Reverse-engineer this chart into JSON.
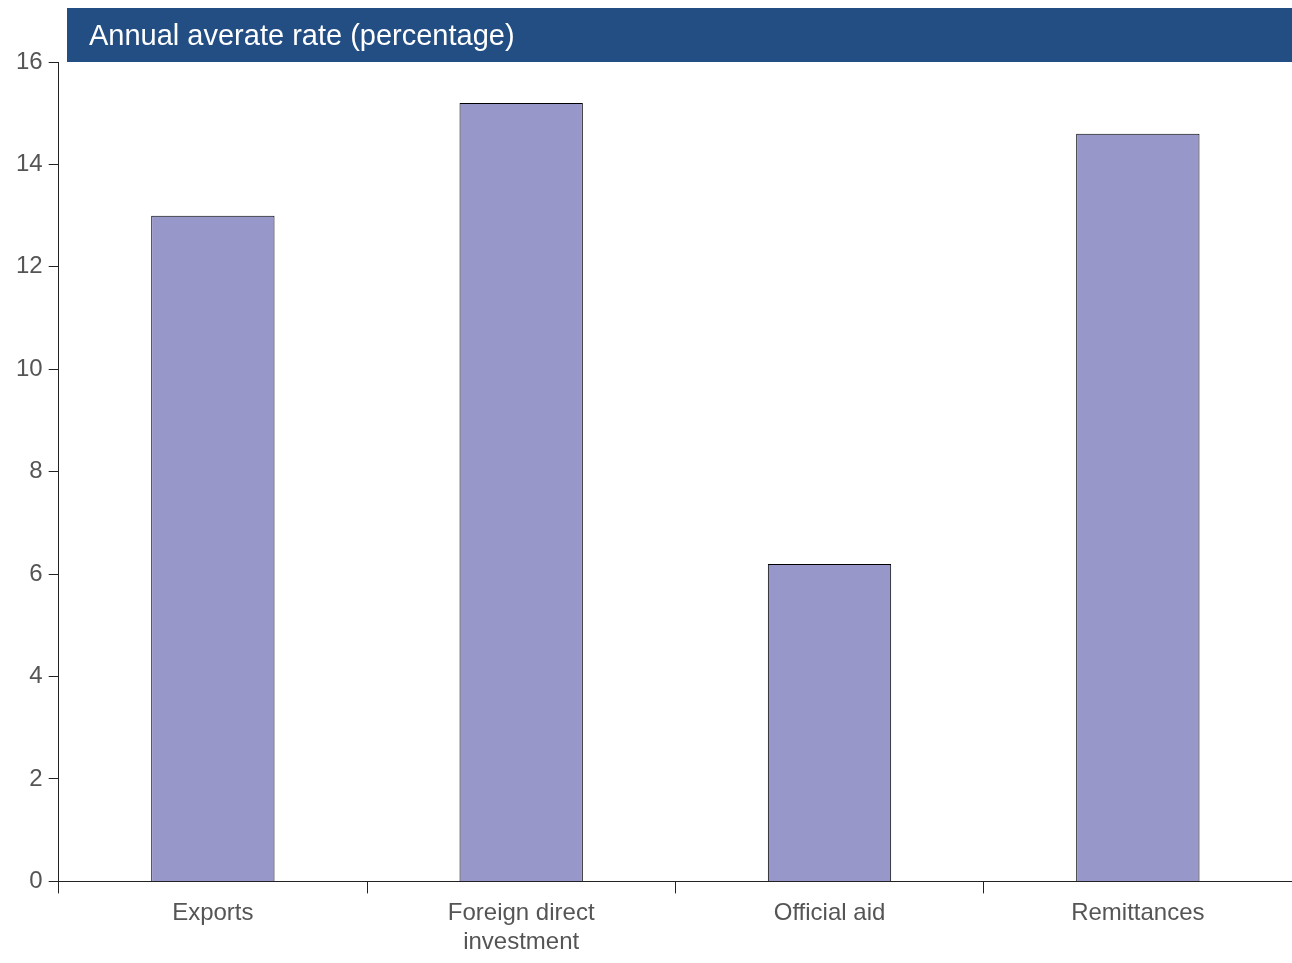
{
  "chart_data": {
    "type": "bar",
    "title": "Annual averate rate (percentage)",
    "categories": [
      "Exports",
      "Foreign direct investment",
      "Official aid",
      "Remittances"
    ],
    "values": [
      13.0,
      15.2,
      6.2,
      14.6
    ],
    "color": "#9797c9",
    "ylim": [
      0,
      16
    ],
    "yticks": [
      0,
      2,
      4,
      6,
      8,
      10,
      12,
      14,
      16
    ],
    "grid": false,
    "legend": false
  }
}
